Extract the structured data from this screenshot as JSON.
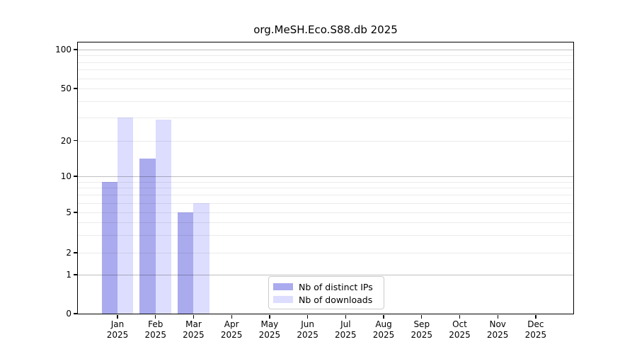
{
  "title": "org.MeSH.Eco.S88.db 2025",
  "legend": {
    "items": [
      {
        "label": "Nb of distinct IPs",
        "color": "#aaaaee"
      },
      {
        "label": "Nb of downloads",
        "color": "#ddddff"
      }
    ]
  },
  "chart_data": {
    "type": "bar",
    "title": "org.MeSH.Eco.S88.db 2025",
    "categories": [
      "Jan 2025",
      "Feb 2025",
      "Mar 2025",
      "Apr 2025",
      "May 2025",
      "Jun 2025",
      "Jul 2025",
      "Aug 2025",
      "Sep 2025",
      "Oct 2025",
      "Nov 2025",
      "Dec 2025"
    ],
    "series": [
      {
        "name": "Nb of distinct IPs",
        "color": "#aaaaee",
        "values": [
          9,
          14,
          5,
          0,
          0,
          0,
          0,
          0,
          0,
          0,
          0,
          0
        ]
      },
      {
        "name": "Nb of downloads",
        "color": "#ddddff",
        "values": [
          30,
          29,
          6,
          0,
          0,
          0,
          0,
          0,
          0,
          0,
          0,
          0
        ]
      }
    ],
    "xlabel": "",
    "ylabel": "",
    "ylim": [
      0,
      100
    ],
    "y_ticks": [
      0,
      1,
      2,
      5,
      10,
      20,
      50,
      100
    ],
    "yscale": "log-like (linear below 1)",
    "grid": true,
    "minor_grid_values": [
      2,
      3,
      4,
      5,
      6,
      7,
      8,
      9,
      20,
      30,
      40,
      50,
      60,
      70,
      80,
      90
    ],
    "major_grid_values": [
      1,
      10,
      100
    ],
    "legend_position": "lower center inside"
  },
  "colors": {
    "background": "#ffffff",
    "spine": "#000000",
    "major_grid": "rgba(0,0,0,0.25)",
    "minor_grid": "rgba(0,0,0,0.08)",
    "legend_border": "#cccccc"
  }
}
